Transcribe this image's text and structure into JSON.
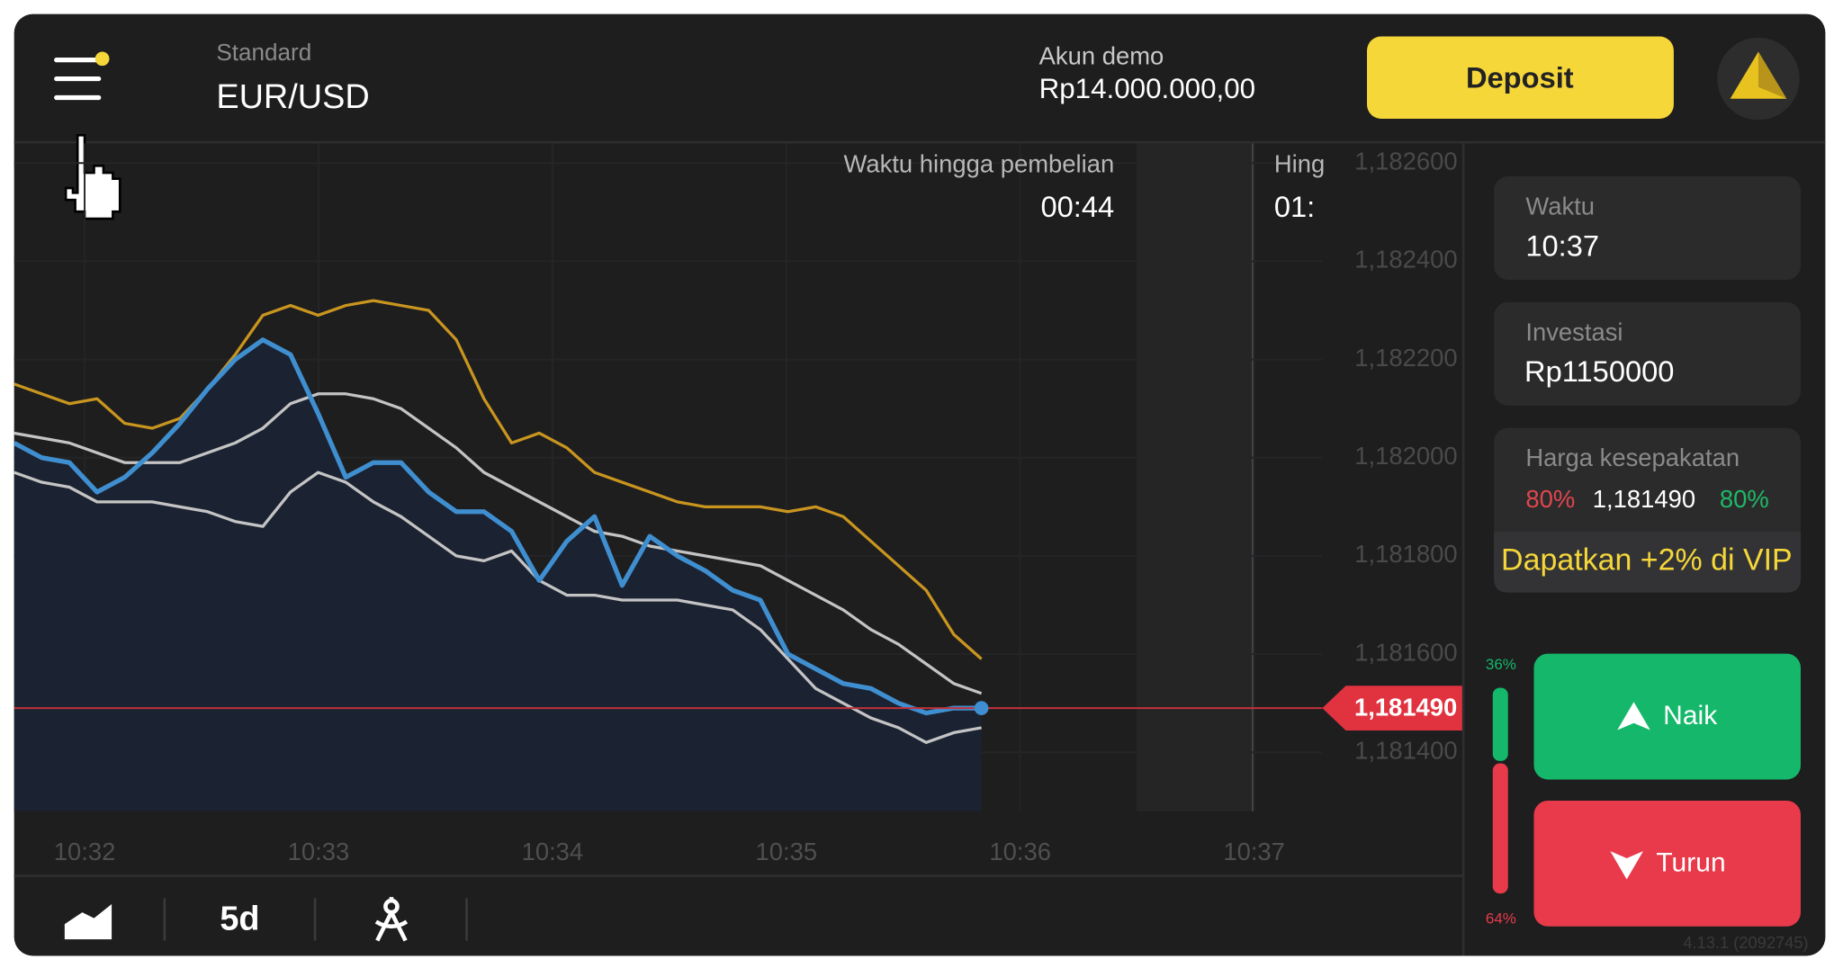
{
  "header": {
    "account_type": "Standard",
    "asset": "EUR/USD",
    "account_label": "Akun demo",
    "balance": "Rp14.000.000,00",
    "deposit_button": "Deposit"
  },
  "chart_data": {
    "type": "line",
    "ylim": [
      1.18128,
      1.18264
    ],
    "yticks": [
      {
        "value": 1.1814,
        "label": "1,181400"
      },
      {
        "value": 1.1816,
        "label": "1,181600"
      },
      {
        "value": 1.1818,
        "label": "1,181800"
      },
      {
        "value": 1.182,
        "label": "1,182000"
      },
      {
        "value": 1.1822,
        "label": "1,182200"
      },
      {
        "value": 1.1824,
        "label": "1,182400"
      },
      {
        "value": 1.1826,
        "label": "1,182600"
      }
    ],
    "x_labels": [
      "10:32",
      "10:33",
      "10:34",
      "10:35",
      "10:36",
      "10:37"
    ],
    "series": [
      {
        "color": "#c9951f",
        "values": [
          1.18215,
          1.18213,
          1.18211,
          1.18212,
          1.18207,
          1.18206,
          1.18208,
          1.18214,
          1.18221,
          1.18229,
          1.18231,
          1.18229,
          1.18231,
          1.18232,
          1.18231,
          1.1823,
          1.18224,
          1.18212,
          1.18203,
          1.18205,
          1.18202,
          1.18197,
          1.18195,
          1.18193,
          1.18191,
          1.1819,
          1.1819,
          1.1819,
          1.18189,
          1.1819,
          1.18188,
          1.18183,
          1.18178,
          1.18173,
          1.18164,
          1.18159
        ]
      },
      {
        "color": "#c4c4c4",
        "values": [
          1.18205,
          1.18204,
          1.18203,
          1.18201,
          1.18199,
          1.18199,
          1.18199,
          1.18201,
          1.18203,
          1.18206,
          1.18211,
          1.18213,
          1.18213,
          1.18212,
          1.1821,
          1.18206,
          1.18202,
          1.18197,
          1.18194,
          1.18191,
          1.18188,
          1.18185,
          1.18184,
          1.18182,
          1.18181,
          1.1818,
          1.18179,
          1.18178,
          1.18175,
          1.18172,
          1.18169,
          1.18165,
          1.18162,
          1.18158,
          1.18154,
          1.18152
        ]
      },
      {
        "color": "#c4c4c4",
        "values": [
          1.18197,
          1.18195,
          1.18194,
          1.18191,
          1.18191,
          1.18191,
          1.1819,
          1.18189,
          1.18187,
          1.18186,
          1.18193,
          1.18197,
          1.18195,
          1.18191,
          1.18188,
          1.18184,
          1.1818,
          1.18179,
          1.18181,
          1.18175,
          1.18172,
          1.18172,
          1.18171,
          1.18171,
          1.18171,
          1.1817,
          1.18169,
          1.18165,
          1.18159,
          1.18153,
          1.1815,
          1.18147,
          1.18145,
          1.18142,
          1.18144,
          1.18145
        ]
      },
      {
        "color": "#3f8fd0",
        "values": [
          1.18203,
          1.182,
          1.18199,
          1.18193,
          1.18196,
          1.18201,
          1.18207,
          1.18214,
          1.1822,
          1.18224,
          1.18221,
          1.18209,
          1.18196,
          1.18199,
          1.18199,
          1.18193,
          1.18189,
          1.18189,
          1.18185,
          1.18175,
          1.18183,
          1.18188,
          1.18174,
          1.18184,
          1.1818,
          1.18177,
          1.18173,
          1.18171,
          1.1816,
          1.18157,
          1.18154,
          1.18153,
          1.1815,
          1.18148,
          1.18149,
          1.18149
        ]
      }
    ],
    "current_price": {
      "value": 1.18149,
      "label": "1,181490"
    },
    "purchase_timer": {
      "label": "Waktu hingga pembelian",
      "value": "00:44"
    },
    "expiry_timer": {
      "label": "Hing",
      "value": "01:"
    }
  },
  "toolbar": {
    "period": "5d"
  },
  "sidebar": {
    "time": {
      "label": "Waktu",
      "value": "10:37"
    },
    "investment": {
      "label": "Investasi",
      "value": "Rp1150000"
    },
    "strike": {
      "label": "Harga kesepakatan",
      "payout_down": "80%",
      "price": "1,181490",
      "payout_up": "80%"
    },
    "vip_promo": "Dapatkan +2% di VIP",
    "sentiment": {
      "values": [
        36,
        64
      ],
      "value_labels": [
        "36%",
        "64%"
      ]
    },
    "buttons": {
      "up": "Naik",
      "down": "Turun"
    },
    "version": "4.13.1 (2092745)"
  }
}
